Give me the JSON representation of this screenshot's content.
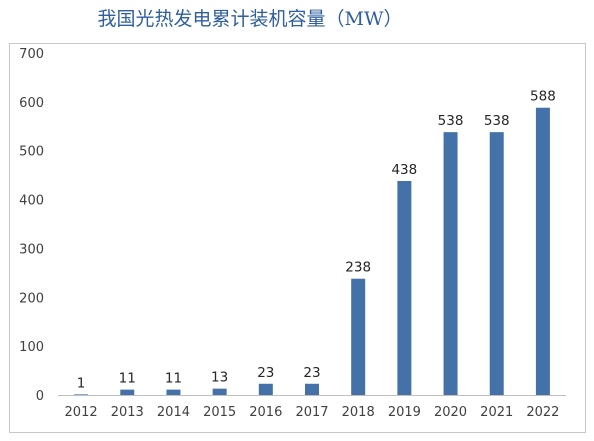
{
  "chart_data": {
    "type": "bar",
    "title": "我国光热发电累计装机容量（MW）",
    "xlabel": "",
    "ylabel": "",
    "categories": [
      "2012",
      "2013",
      "2014",
      "2015",
      "2016",
      "2017",
      "2018",
      "2019",
      "2020",
      "2021",
      "2022"
    ],
    "values": [
      1,
      11,
      11,
      13,
      23,
      23,
      238,
      438,
      538,
      538,
      588
    ],
    "data_labels": [
      "1",
      "11",
      "11",
      "13",
      "23",
      "23",
      "238",
      "438",
      "538",
      "538",
      "588"
    ],
    "y_ticks": [
      "0",
      "100",
      "200",
      "300",
      "400",
      "500",
      "600",
      "700"
    ],
    "ylim": [
      0,
      700
    ],
    "grid": false,
    "legend": "none",
    "bar_color": "#4472a8",
    "title_color": "#2f5f9e"
  }
}
